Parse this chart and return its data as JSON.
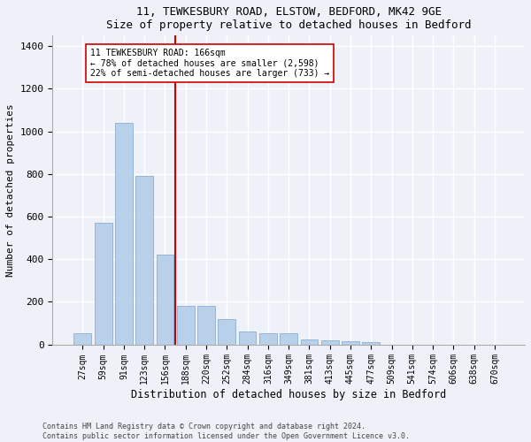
{
  "title1": "11, TEWKESBURY ROAD, ELSTOW, BEDFORD, MK42 9GE",
  "title2": "Size of property relative to detached houses in Bedford",
  "xlabel": "Distribution of detached houses by size in Bedford",
  "ylabel": "Number of detached properties",
  "categories": [
    "27sqm",
    "59sqm",
    "91sqm",
    "123sqm",
    "156sqm",
    "188sqm",
    "220sqm",
    "252sqm",
    "284sqm",
    "316sqm",
    "349sqm",
    "381sqm",
    "413sqm",
    "445sqm",
    "477sqm",
    "509sqm",
    "541sqm",
    "574sqm",
    "606sqm",
    "638sqm",
    "670sqm"
  ],
  "values": [
    50,
    570,
    1040,
    790,
    420,
    180,
    180,
    120,
    60,
    50,
    50,
    25,
    20,
    15,
    12,
    0,
    0,
    0,
    0,
    0,
    0
  ],
  "bar_color": "#b8d0ea",
  "bar_edge_color": "#8ab0d0",
  "vline_x": 4.5,
  "vline_color": "#cc0000",
  "annotation_title": "11 TEWKESBURY ROAD: 166sqm",
  "annotation_line1": "← 78% of detached houses are smaller (2,598)",
  "annotation_line2": "22% of semi-detached houses are larger (733) →",
  "annotation_box_color": "#ffffff",
  "annotation_box_edge": "#cc0000",
  "ylim": [
    0,
    1450
  ],
  "yticks": [
    0,
    200,
    400,
    600,
    800,
    1000,
    1200,
    1400
  ],
  "footer1": "Contains HM Land Registry data © Crown copyright and database right 2024.",
  "footer2": "Contains public sector information licensed under the Open Government Licence v3.0.",
  "bg_color": "#eef2f8",
  "plot_bg_color": "#eef2f8",
  "grid_color": "#ffffff"
}
